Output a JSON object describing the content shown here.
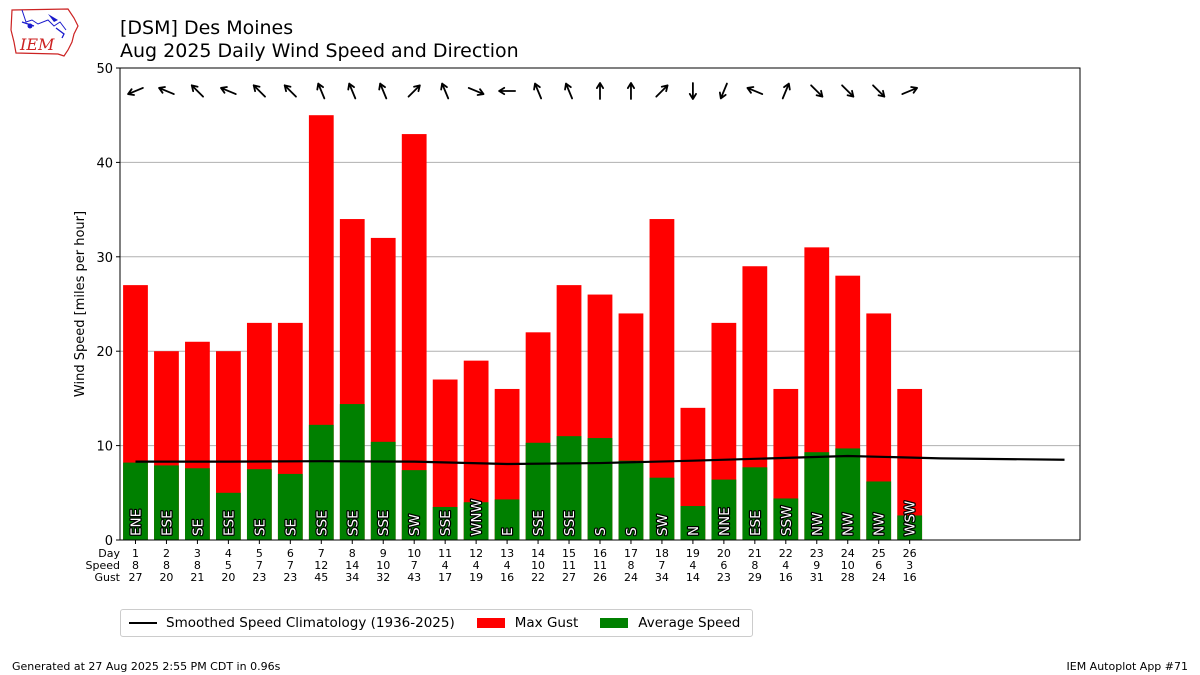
{
  "title": "[DSM] Des Moines",
  "subtitle": "Aug 2025 Daily Wind Speed and Direction",
  "footer_left": "Generated at 27 Aug 2025 2:55 PM CDT in 0.96s",
  "footer_right": "IEM Autoplot App #71",
  "logo_text": "IEM",
  "colors": {
    "gust": "#ff0000",
    "avg": "#008000",
    "climo": "#000000",
    "grid": "#b0b0b0",
    "logo_red": "#cc2222",
    "logo_blue": "#1a1acc"
  },
  "legend": [
    {
      "label": "Smoothed Speed Climatology (1936-2025)",
      "kind": "line",
      "color": "#000000"
    },
    {
      "label": "Max Gust",
      "kind": "patch",
      "color": "#ff0000"
    },
    {
      "label": "Average Speed",
      "kind": "patch",
      "color": "#008000"
    }
  ],
  "chart_data": {
    "type": "bar",
    "xlabel": "",
    "ylabel": "Wind Speed [miles per hour]",
    "ylim": [
      0,
      50
    ],
    "yticks": [
      0,
      10,
      20,
      30,
      40,
      50
    ],
    "xlim": [
      0.5,
      31.5
    ],
    "grid": "horizontal",
    "legend_position": "bottom",
    "row_labels": [
      "Day",
      "Speed",
      "Gust"
    ],
    "days": [
      1,
      2,
      3,
      4,
      5,
      6,
      7,
      8,
      9,
      10,
      11,
      12,
      13,
      14,
      15,
      16,
      17,
      18,
      19,
      20,
      21,
      22,
      23,
      24,
      25,
      26
    ],
    "speed_labels": [
      8,
      8,
      8,
      5,
      7,
      7,
      12,
      14,
      10,
      7,
      4,
      4,
      4,
      10,
      11,
      11,
      8,
      7,
      4,
      6,
      8,
      4,
      9,
      10,
      6,
      3
    ],
    "series": [
      {
        "name": "Max Gust",
        "values": [
          27,
          20,
          21,
          20,
          23,
          23,
          45,
          34,
          32,
          43,
          17,
          19,
          16,
          22,
          27,
          26,
          24,
          34,
          14,
          23,
          29,
          16,
          31,
          28,
          24,
          16
        ]
      },
      {
        "name": "Average Speed",
        "values": [
          8.2,
          7.9,
          7.6,
          5.0,
          7.5,
          7.0,
          12.2,
          14.4,
          10.4,
          7.4,
          3.5,
          4.0,
          4.3,
          10.3,
          11.0,
          10.8,
          8.4,
          6.6,
          3.6,
          6.4,
          7.7,
          4.4,
          9.3,
          9.7,
          6.2,
          2.6
        ]
      },
      {
        "name": "Smoothed Speed Climatology (1936-2025)",
        "x": [
          1,
          4,
          7,
          10,
          13,
          16,
          19,
          22,
          24,
          27,
          31
        ],
        "values": [
          8.3,
          8.3,
          8.35,
          8.3,
          8.05,
          8.15,
          8.4,
          8.7,
          8.9,
          8.65,
          8.5
        ]
      }
    ],
    "directions": [
      "ENE",
      "ESE",
      "SE",
      "ESE",
      "SE",
      "SE",
      "SSE",
      "SSE",
      "SSE",
      "SW",
      "SSE",
      "WNW",
      "E",
      "SSE",
      "SSE",
      "S",
      "S",
      "SW",
      "N",
      "NNE",
      "ESE",
      "SSW",
      "NW",
      "NW",
      "NW",
      "WSW"
    ],
    "arrow_dirs_deg": [
      67.5,
      112.5,
      135,
      112.5,
      135,
      135,
      157.5,
      157.5,
      157.5,
      225,
      157.5,
      292.5,
      90,
      157.5,
      157.5,
      180,
      180,
      225,
      0,
      22.5,
      112.5,
      202.5,
      315,
      315,
      315,
      247.5
    ]
  }
}
